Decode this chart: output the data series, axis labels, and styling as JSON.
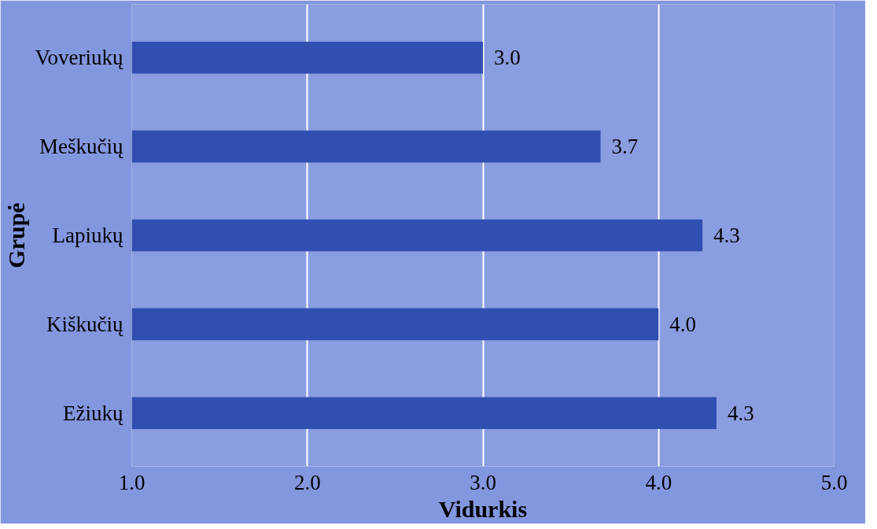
{
  "chart_data": {
    "type": "bar",
    "orientation": "horizontal",
    "xlabel": "Vidurkis",
    "ylabel": "Grupė",
    "categories": [
      "Voveriukų",
      "Meškučių",
      "Lapiukų",
      "Kiškučių",
      "Ežiukų"
    ],
    "values": [
      3.0,
      3.67,
      4.25,
      4.0,
      4.33
    ],
    "value_labels": [
      "3.0",
      "3.7",
      "4.3",
      "4.0",
      "4.3"
    ],
    "color": "#304fb0",
    "xlim": [
      1.0,
      5.0
    ],
    "xticks": [
      {
        "value": 1,
        "label": "1.0"
      },
      {
        "value": 2,
        "label": "2.0"
      },
      {
        "value": 3,
        "label": "3.0"
      },
      {
        "value": 4,
        "label": "4.0"
      },
      {
        "value": 5,
        "label": "5.0"
      }
    ],
    "grid": "x"
  }
}
